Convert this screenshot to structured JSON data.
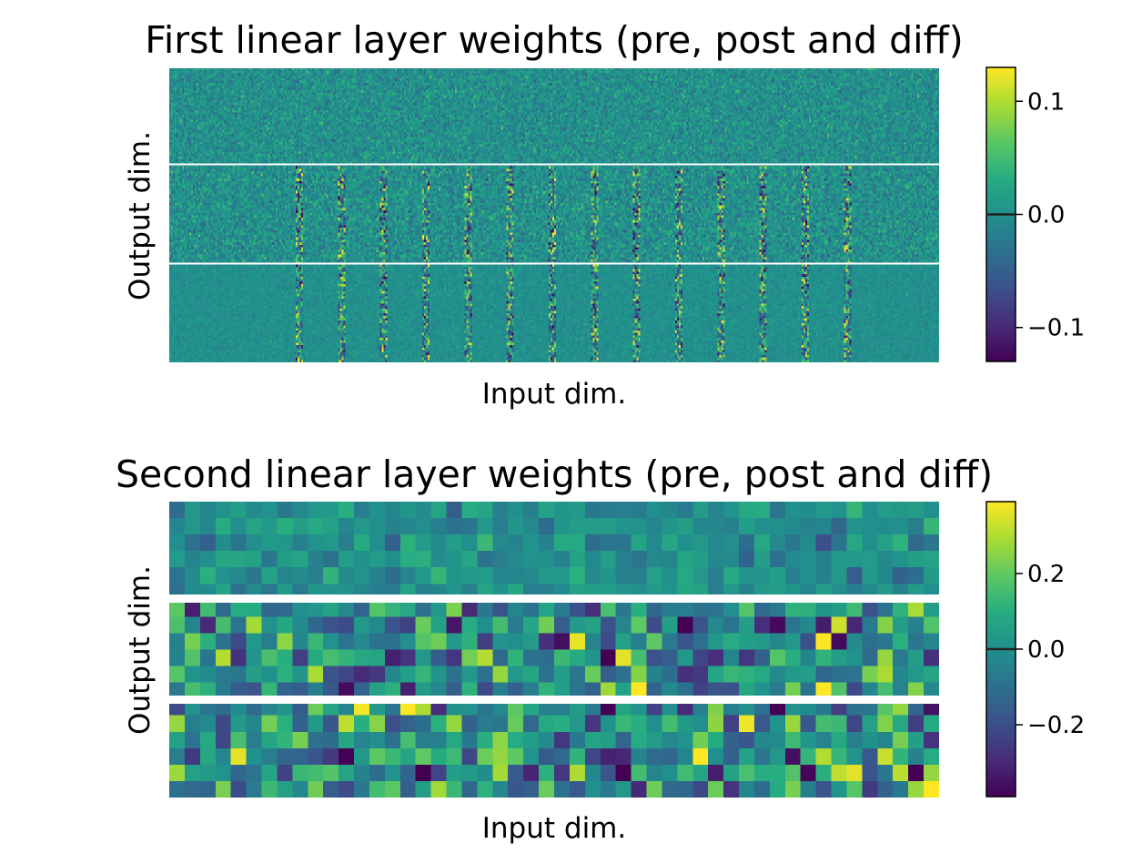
{
  "chart_data": [
    {
      "type": "heatmap",
      "title": "First linear layer weights (pre, post and diff)",
      "xlabel": "Input dim.",
      "ylabel": "Output dim.",
      "panels": [
        "pre",
        "post",
        "diff"
      ],
      "cell_grid": {
        "cols": 420,
        "rows_per_panel": 40
      },
      "colorbar": {
        "colormap": "viridis",
        "range": [
          -0.13,
          0.13
        ],
        "ticks": [
          0.1,
          0.0,
          -0.1
        ],
        "tick_labels": [
          "0.1",
          "0.0",
          "−0.1"
        ]
      }
    },
    {
      "type": "heatmap",
      "title": "Second linear layer weights (pre, post and diff)",
      "xlabel": "Input dim.",
      "ylabel": "Output dim.",
      "panels": [
        "pre",
        "post",
        "diff"
      ],
      "cell_grid": {
        "cols": 50,
        "rows_per_panel": 6
      },
      "colorbar": {
        "colormap": "viridis",
        "range": [
          -0.39,
          0.39
        ],
        "ticks": [
          0.2,
          0.0,
          -0.2
        ],
        "tick_labels": [
          "0.2",
          "0.0",
          "−0.2"
        ]
      }
    }
  ]
}
